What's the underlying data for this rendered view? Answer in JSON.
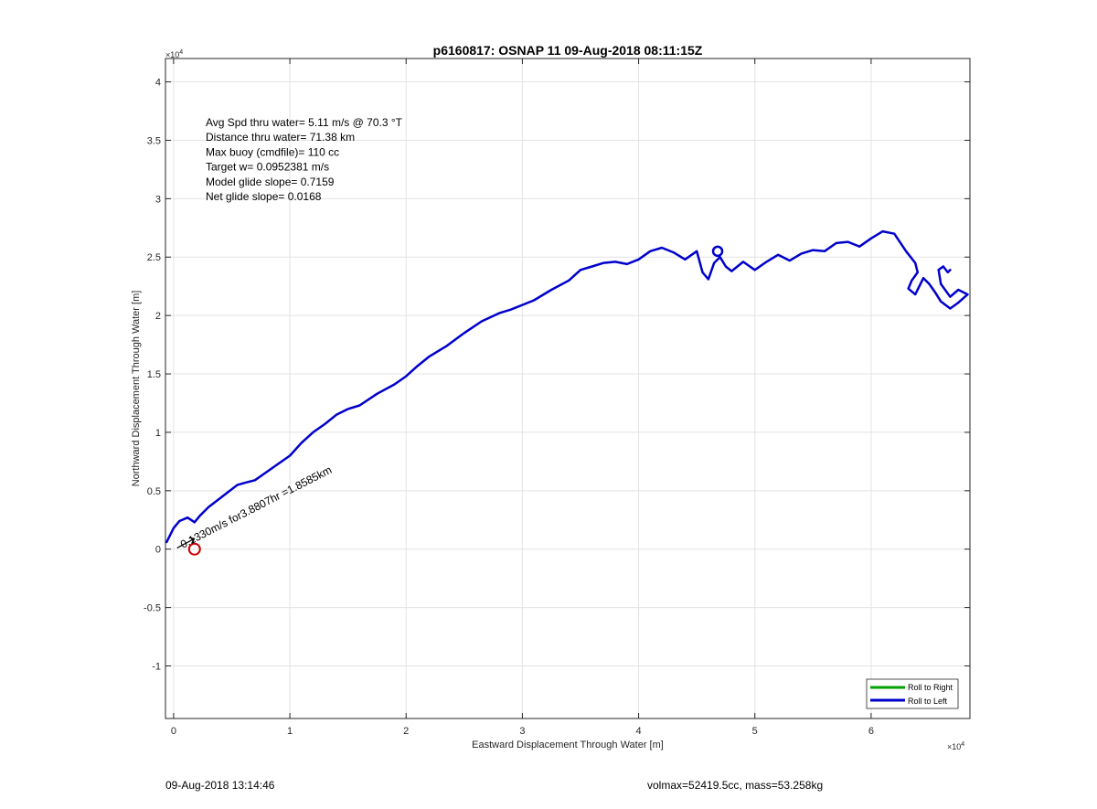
{
  "chart_data": {
    "type": "line",
    "title": "p6160817: OSNAP 11 09-Aug-2018 08:11:15Z",
    "xlabel": "Eastward Displacement Through Water [m]",
    "ylabel": "Northward Displacement Through Water [m]",
    "xlim": [
      -700,
      68500
    ],
    "ylim": [
      -14500,
      42000
    ],
    "x_exponent": "×10",
    "x_exponent_power": "4",
    "y_exponent": "×10",
    "y_exponent_power": "4",
    "x_ticks": [
      {
        "value": 0,
        "label": "0"
      },
      {
        "value": 10000,
        "label": "1"
      },
      {
        "value": 20000,
        "label": "2"
      },
      {
        "value": 30000,
        "label": "3"
      },
      {
        "value": 40000,
        "label": "4"
      },
      {
        "value": 50000,
        "label": "5"
      },
      {
        "value": 60000,
        "label": "6"
      }
    ],
    "y_ticks": [
      {
        "value": -10000,
        "label": "-1"
      },
      {
        "value": -5000,
        "label": "-0.5"
      },
      {
        "value": 0,
        "label": "0"
      },
      {
        "value": 5000,
        "label": "0.5"
      },
      {
        "value": 10000,
        "label": "1"
      },
      {
        "value": 15000,
        "label": "1.5"
      },
      {
        "value": 20000,
        "label": "2"
      },
      {
        "value": 25000,
        "label": "2.5"
      },
      {
        "value": 30000,
        "label": "3"
      },
      {
        "value": 35000,
        "label": "3.5"
      },
      {
        "value": 40000,
        "label": "4"
      }
    ],
    "grid": true,
    "legend_position": "bottom-right",
    "series": [
      {
        "name": "Roll to Right",
        "color": "#00a000",
        "x": [],
        "y": []
      },
      {
        "name": "Roll to Left",
        "color": "#0000cc",
        "x": [
          -600,
          0,
          500,
          1200,
          1800,
          2300,
          3000,
          3800,
          4700,
          5500,
          6200,
          7000,
          8000,
          9000,
          10000,
          11000,
          12000,
          13000,
          14000,
          15000,
          16000,
          17500,
          19000,
          20000,
          21000,
          22000,
          23500,
          25000,
          26500,
          28000,
          29000,
          30000,
          31000,
          32500,
          34000,
          35000,
          36000,
          37000,
          38000,
          39000,
          40000,
          41000,
          42000,
          43000,
          44000,
          45000,
          45500,
          46000,
          46500,
          47000,
          47500,
          48000,
          49000,
          50000,
          51000,
          52000,
          53000,
          54000,
          55000,
          56000,
          57000,
          58000,
          59000,
          60000,
          61000,
          62000,
          63000,
          63800,
          64000,
          63500,
          63200,
          63800,
          64500,
          65000,
          65500,
          66000,
          66800,
          67500,
          68300,
          67500,
          66800,
          66000,
          65800,
          66200,
          66600,
          66800
        ],
        "y": [
          600,
          1800,
          2400,
          2700,
          2300,
          2900,
          3600,
          4200,
          4900,
          5500,
          5700,
          5900,
          6600,
          7300,
          8000,
          9100,
          10000,
          10700,
          11500,
          12000,
          12300,
          13300,
          14100,
          14800,
          15700,
          16500,
          17400,
          18500,
          19500,
          20200,
          20500,
          20900,
          21300,
          22200,
          23000,
          23900,
          24200,
          24500,
          24600,
          24400,
          24800,
          25500,
          25800,
          25400,
          24800,
          25500,
          23700,
          23100,
          24500,
          25000,
          24200,
          23800,
          24600,
          23900,
          24600,
          25200,
          24700,
          25300,
          25600,
          25500,
          26200,
          26300,
          25900,
          26600,
          27200,
          27000,
          25500,
          24500,
          23700,
          23000,
          22300,
          21800,
          23200,
          22700,
          22000,
          21200,
          20600,
          21100,
          21800,
          22200,
          21600,
          22700,
          23900,
          24200,
          23700,
          23900
        ]
      }
    ],
    "annotations": {
      "stats": [
        "Avg Spd thru water=  5.11 m/s @  70.3 °T",
        "Distance thru water= 71.38 km",
        "Max buoy (cmdfile)= 110 cc",
        "Target w= 0.0952381 m/s",
        "Model glide slope= 0.7159",
        "Net glide slope= 0.0168"
      ],
      "current_label": "0.1330m/s for3.8807hr =1.8585km",
      "loop": {
        "x": 46800,
        "y": 25500
      },
      "target_circle": {
        "x": 1800,
        "y": 0
      },
      "current_arrow": {
        "from": [
          300,
          100
        ],
        "to": [
          1800,
          900
        ]
      }
    }
  },
  "footer": {
    "left": "09-Aug-2018 13:14:46",
    "right": "volmax=52419.5cc, mass=53.258kg"
  }
}
